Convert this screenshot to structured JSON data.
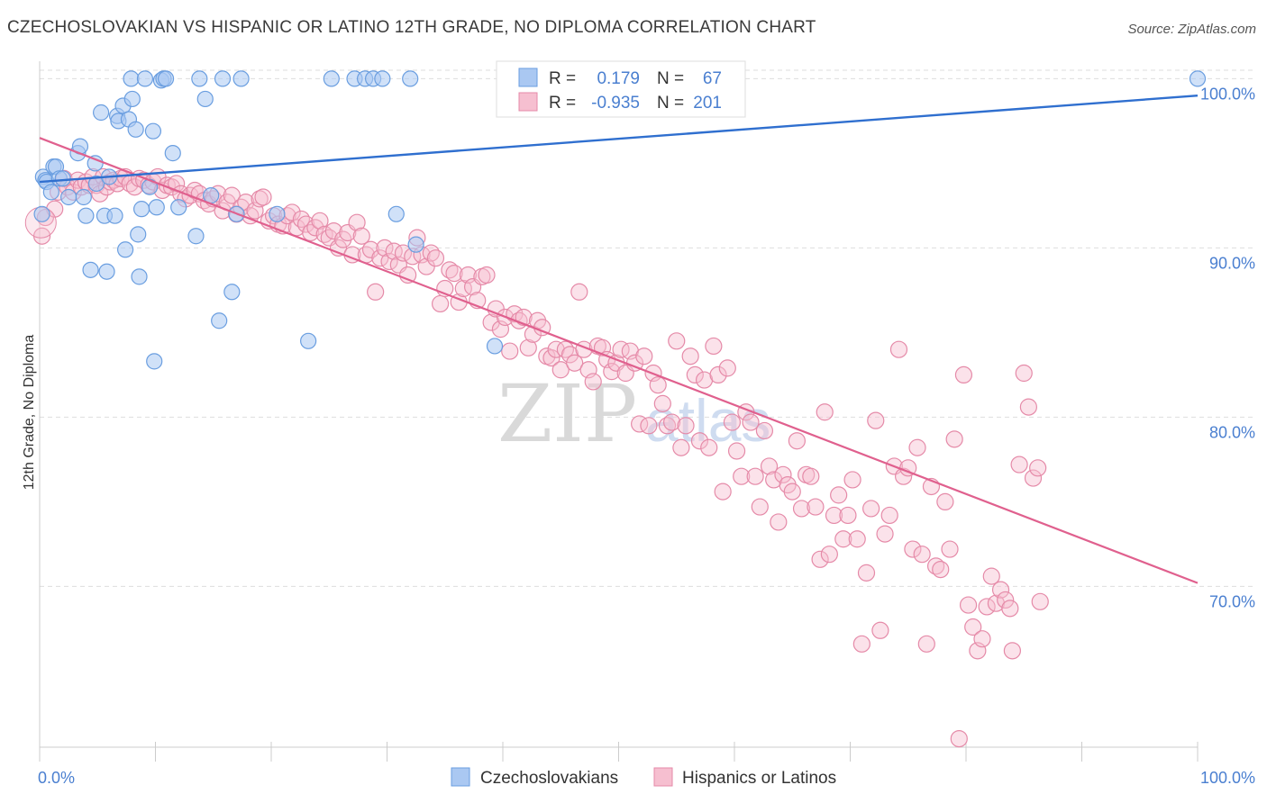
{
  "title": "CZECHOSLOVAKIAN VS HISPANIC OR LATINO 12TH GRADE, NO DIPLOMA CORRELATION CHART",
  "source": "Source: ZipAtlas.com",
  "watermark": {
    "zip": "ZIP",
    "atlas": "atlas"
  },
  "colors": {
    "blue_fill": "#aac8f2",
    "blue_stroke": "#6a9ee0",
    "blue_line": "#2f6fcf",
    "pink_fill": "#f6bfd0",
    "pink_stroke": "#e58aa8",
    "pink_line": "#e0608e",
    "accent_text": "#4a7fd0",
    "grid": "#dddddd"
  },
  "legend": {
    "rows": [
      {
        "r_label": "R =",
        "r_value": "0.179",
        "n_label": "N =",
        "n_value": "67"
      },
      {
        "r_label": "R =",
        "r_value": "-0.935",
        "n_label": "N =",
        "n_value": "201"
      }
    ]
  },
  "bottom_legend": [
    "Czechoslovakians",
    "Hispanics or Latinos"
  ],
  "chart_data": {
    "type": "scatter",
    "title": "CZECHOSLOVAKIAN VS HISPANIC OR LATINO 12TH GRADE, NO DIPLOMA CORRELATION CHART",
    "xlabel": "",
    "ylabel": "12th Grade, No Diploma",
    "xlim": [
      0,
      100
    ],
    "ylim": [
      60.5,
      100.5
    ],
    "x_tick_labels": [
      "0.0%",
      "100.0%"
    ],
    "y_ticks": [
      70,
      80,
      90,
      100
    ],
    "y_tick_labels": [
      "70.0%",
      "80.0%",
      "90.0%",
      "100.0%"
    ],
    "grid": true,
    "legend_position": "top-center",
    "series": [
      {
        "name": "Czechoslovakians",
        "color": "#aac8f2",
        "trend": {
          "x": [
            0,
            100
          ],
          "y": [
            93.9,
            99.0
          ]
        },
        "points": [
          [
            0.2,
            92.0
          ],
          [
            0.3,
            94.2
          ],
          [
            0.5,
            94.0
          ],
          [
            0.6,
            93.9
          ],
          [
            1.0,
            93.3
          ],
          [
            1.2,
            94.8
          ],
          [
            1.4,
            94.8
          ],
          [
            1.7,
            94.1
          ],
          [
            2.0,
            94.1
          ],
          [
            2.5,
            93.0
          ],
          [
            3.3,
            95.6
          ],
          [
            3.5,
            96.0
          ],
          [
            3.8,
            93.0
          ],
          [
            4.0,
            91.9
          ],
          [
            4.4,
            88.7
          ],
          [
            4.8,
            95.0
          ],
          [
            4.9,
            93.8
          ],
          [
            5.3,
            98.0
          ],
          [
            5.6,
            91.9
          ],
          [
            5.8,
            88.6
          ],
          [
            6.0,
            94.2
          ],
          [
            6.5,
            91.9
          ],
          [
            6.7,
            97.8
          ],
          [
            6.8,
            97.5
          ],
          [
            7.2,
            98.4
          ],
          [
            7.4,
            89.9
          ],
          [
            7.7,
            97.6
          ],
          [
            7.9,
            100.0
          ],
          [
            8.0,
            98.8
          ],
          [
            8.3,
            97.0
          ],
          [
            8.5,
            90.8
          ],
          [
            8.6,
            88.3
          ],
          [
            8.8,
            92.3
          ],
          [
            9.1,
            100.0
          ],
          [
            9.5,
            93.6
          ],
          [
            9.8,
            96.9
          ],
          [
            9.9,
            83.3
          ],
          [
            10.1,
            92.4
          ],
          [
            10.5,
            99.9
          ],
          [
            10.7,
            100.0
          ],
          [
            10.9,
            100.0
          ],
          [
            11.5,
            95.6
          ],
          [
            12.0,
            92.4
          ],
          [
            13.5,
            90.7
          ],
          [
            13.8,
            100.0
          ],
          [
            14.3,
            98.8
          ],
          [
            14.8,
            93.1
          ],
          [
            15.5,
            85.7
          ],
          [
            15.8,
            100.0
          ],
          [
            16.6,
            87.4
          ],
          [
            17.0,
            92.0
          ],
          [
            17.4,
            100.0
          ],
          [
            20.5,
            92.0
          ],
          [
            23.2,
            84.5
          ],
          [
            25.2,
            100.0
          ],
          [
            27.2,
            100.0
          ],
          [
            28.1,
            100.0
          ],
          [
            28.8,
            100.0
          ],
          [
            29.6,
            100.0
          ],
          [
            30.8,
            92.0
          ],
          [
            32.0,
            100.0
          ],
          [
            32.5,
            90.2
          ],
          [
            39.3,
            84.2
          ],
          [
            100.0,
            100.0
          ]
        ]
      },
      {
        "name": "Hispanics or Latinos",
        "color": "#f6bfd0",
        "trend": {
          "x": [
            0,
            100
          ],
          "y": [
            96.5,
            70.2
          ]
        },
        "points": [
          [
            0.2,
            90.7
          ],
          [
            0.5,
            91.8
          ],
          [
            1.3,
            92.3
          ],
          [
            1.6,
            93.3
          ],
          [
            2.1,
            94.1
          ],
          [
            2.4,
            93.6
          ],
          [
            2.9,
            93.3
          ],
          [
            3.3,
            94.0
          ],
          [
            3.6,
            93.6
          ],
          [
            4.0,
            93.9
          ],
          [
            4.3,
            93.7
          ],
          [
            4.6,
            94.2
          ],
          [
            4.9,
            93.7
          ],
          [
            5.2,
            93.2
          ],
          [
            5.5,
            94.2
          ],
          [
            5.8,
            93.6
          ],
          [
            6.1,
            93.9
          ],
          [
            6.4,
            94.0
          ],
          [
            6.7,
            93.8
          ],
          [
            7.0,
            94.1
          ],
          [
            7.4,
            94.2
          ],
          [
            7.8,
            93.8
          ],
          [
            8.2,
            93.6
          ],
          [
            8.6,
            94.1
          ],
          [
            9.0,
            94.0
          ],
          [
            9.4,
            93.7
          ],
          [
            9.8,
            93.9
          ],
          [
            10.2,
            94.2
          ],
          [
            10.6,
            93.4
          ],
          [
            11.0,
            93.7
          ],
          [
            11.4,
            93.6
          ],
          [
            11.8,
            93.8
          ],
          [
            12.2,
            93.2
          ],
          [
            12.6,
            92.9
          ],
          [
            13.0,
            93.1
          ],
          [
            13.4,
            93.4
          ],
          [
            13.8,
            93.2
          ],
          [
            14.2,
            92.8
          ],
          [
            14.6,
            92.6
          ],
          [
            15.0,
            92.9
          ],
          [
            15.4,
            93.2
          ],
          [
            15.8,
            92.2
          ],
          [
            16.2,
            92.7
          ],
          [
            16.6,
            93.1
          ],
          [
            17.0,
            92.0
          ],
          [
            17.4,
            92.4
          ],
          [
            17.8,
            92.7
          ],
          [
            18.2,
            91.9
          ],
          [
            18.6,
            92.2
          ],
          [
            19.0,
            92.9
          ],
          [
            19.3,
            93.0
          ],
          [
            19.8,
            91.6
          ],
          [
            20.2,
            91.9
          ],
          [
            20.6,
            91.4
          ],
          [
            21.0,
            91.3
          ],
          [
            21.4,
            91.9
          ],
          [
            21.8,
            92.1
          ],
          [
            22.2,
            91.2
          ],
          [
            22.6,
            91.7
          ],
          [
            23.0,
            91.4
          ],
          [
            23.4,
            90.9
          ],
          [
            23.8,
            91.2
          ],
          [
            24.2,
            91.6
          ],
          [
            24.6,
            90.8
          ],
          [
            25.0,
            90.6
          ],
          [
            25.4,
            91.0
          ],
          [
            25.8,
            90.0
          ],
          [
            26.2,
            90.5
          ],
          [
            26.6,
            90.9
          ],
          [
            27.0,
            89.6
          ],
          [
            27.4,
            91.5
          ],
          [
            27.8,
            90.7
          ],
          [
            28.2,
            89.6
          ],
          [
            28.6,
            89.9
          ],
          [
            29.0,
            87.4
          ],
          [
            29.4,
            89.4
          ],
          [
            29.8,
            90.0
          ],
          [
            30.2,
            89.2
          ],
          [
            30.6,
            89.8
          ],
          [
            31.0,
            89.0
          ],
          [
            31.4,
            89.7
          ],
          [
            31.8,
            88.4
          ],
          [
            32.2,
            89.5
          ],
          [
            32.6,
            90.6
          ],
          [
            33.0,
            89.6
          ],
          [
            33.4,
            88.9
          ],
          [
            33.8,
            89.7
          ],
          [
            34.2,
            89.4
          ],
          [
            34.6,
            86.7
          ],
          [
            35.0,
            87.6
          ],
          [
            35.4,
            88.7
          ],
          [
            35.8,
            88.5
          ],
          [
            36.2,
            86.8
          ],
          [
            36.6,
            87.6
          ],
          [
            37.0,
            88.4
          ],
          [
            37.4,
            87.7
          ],
          [
            37.8,
            86.9
          ],
          [
            38.2,
            88.3
          ],
          [
            38.6,
            88.4
          ],
          [
            39.0,
            85.6
          ],
          [
            39.4,
            86.4
          ],
          [
            39.8,
            85.2
          ],
          [
            40.2,
            85.9
          ],
          [
            40.6,
            83.9
          ],
          [
            41.0,
            86.1
          ],
          [
            41.4,
            85.7
          ],
          [
            41.8,
            85.9
          ],
          [
            42.2,
            84.1
          ],
          [
            42.6,
            84.9
          ],
          [
            43.0,
            85.7
          ],
          [
            43.4,
            85.3
          ],
          [
            43.8,
            83.6
          ],
          [
            44.2,
            83.5
          ],
          [
            44.6,
            84.0
          ],
          [
            45.0,
            82.8
          ],
          [
            45.4,
            84.0
          ],
          [
            45.8,
            83.7
          ],
          [
            46.2,
            83.2
          ],
          [
            46.6,
            87.4
          ],
          [
            47.0,
            84.0
          ],
          [
            47.4,
            82.8
          ],
          [
            47.8,
            82.1
          ],
          [
            48.2,
            84.2
          ],
          [
            48.6,
            84.1
          ],
          [
            49.0,
            83.4
          ],
          [
            49.4,
            82.7
          ],
          [
            49.8,
            83.2
          ],
          [
            50.2,
            84.0
          ],
          [
            50.6,
            82.6
          ],
          [
            51.0,
            83.9
          ],
          [
            51.4,
            83.2
          ],
          [
            51.8,
            79.6
          ],
          [
            52.2,
            83.6
          ],
          [
            52.6,
            79.5
          ],
          [
            53.0,
            82.6
          ],
          [
            53.4,
            81.9
          ],
          [
            53.8,
            80.8
          ],
          [
            54.2,
            79.5
          ],
          [
            54.6,
            79.7
          ],
          [
            55.0,
            84.5
          ],
          [
            55.4,
            78.2
          ],
          [
            55.8,
            79.5
          ],
          [
            56.2,
            83.6
          ],
          [
            56.6,
            82.5
          ],
          [
            57.0,
            78.6
          ],
          [
            57.4,
            82.2
          ],
          [
            57.8,
            78.2
          ],
          [
            58.2,
            84.2
          ],
          [
            58.6,
            82.5
          ],
          [
            59.0,
            75.6
          ],
          [
            59.4,
            82.9
          ],
          [
            59.8,
            79.7
          ],
          [
            60.2,
            78.0
          ],
          [
            60.6,
            76.5
          ],
          [
            61.0,
            80.3
          ],
          [
            61.4,
            79.7
          ],
          [
            61.8,
            76.5
          ],
          [
            62.2,
            74.7
          ],
          [
            62.6,
            79.2
          ],
          [
            63.0,
            77.1
          ],
          [
            63.4,
            76.3
          ],
          [
            63.8,
            73.8
          ],
          [
            64.2,
            76.6
          ],
          [
            64.6,
            76.0
          ],
          [
            65.0,
            75.6
          ],
          [
            65.4,
            78.6
          ],
          [
            65.8,
            74.6
          ],
          [
            66.2,
            76.6
          ],
          [
            66.6,
            76.5
          ],
          [
            67.0,
            74.7
          ],
          [
            67.4,
            71.6
          ],
          [
            67.8,
            80.3
          ],
          [
            68.2,
            71.9
          ],
          [
            68.6,
            74.2
          ],
          [
            69.0,
            75.4
          ],
          [
            69.4,
            72.8
          ],
          [
            69.8,
            74.2
          ],
          [
            70.2,
            76.3
          ],
          [
            70.6,
            72.8
          ],
          [
            71.0,
            66.6
          ],
          [
            71.4,
            70.8
          ],
          [
            71.8,
            74.6
          ],
          [
            72.2,
            79.8
          ],
          [
            72.6,
            67.4
          ],
          [
            73.0,
            73.1
          ],
          [
            73.4,
            74.2
          ],
          [
            73.8,
            77.1
          ],
          [
            74.2,
            84.0
          ],
          [
            74.6,
            76.5
          ],
          [
            75.0,
            77.0
          ],
          [
            75.4,
            72.2
          ],
          [
            75.8,
            78.2
          ],
          [
            76.2,
            71.9
          ],
          [
            76.6,
            66.6
          ],
          [
            77.0,
            75.9
          ],
          [
            77.4,
            71.2
          ],
          [
            77.8,
            71.0
          ],
          [
            78.2,
            75.0
          ],
          [
            78.6,
            72.2
          ],
          [
            79.0,
            78.7
          ],
          [
            79.4,
            61.0
          ],
          [
            79.8,
            82.5
          ],
          [
            80.2,
            68.9
          ],
          [
            80.6,
            67.6
          ],
          [
            81.0,
            66.2
          ],
          [
            81.4,
            66.9
          ],
          [
            81.8,
            68.8
          ],
          [
            82.2,
            70.6
          ],
          [
            82.6,
            69.0
          ],
          [
            83.0,
            69.8
          ],
          [
            83.4,
            69.2
          ],
          [
            83.8,
            68.7
          ],
          [
            84.0,
            66.2
          ],
          [
            84.6,
            77.2
          ],
          [
            85.0,
            82.6
          ],
          [
            85.4,
            80.6
          ],
          [
            85.8,
            76.4
          ],
          [
            86.2,
            77.0
          ],
          [
            86.4,
            69.1
          ]
        ]
      }
    ]
  }
}
